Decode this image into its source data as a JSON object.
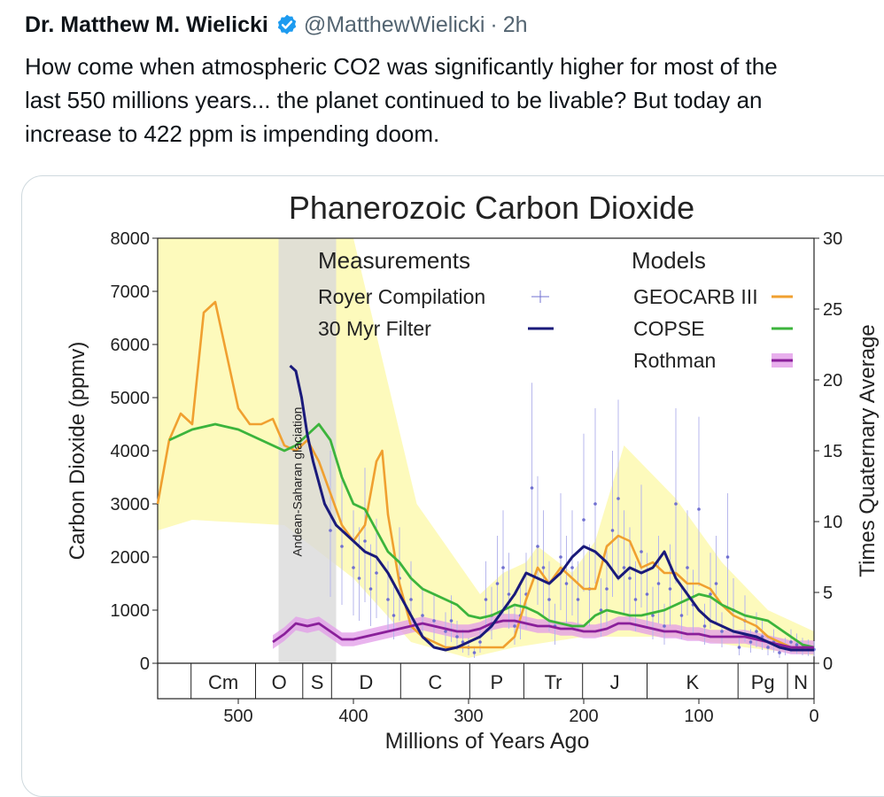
{
  "tweet": {
    "author_name": "Dr. Matthew M. Wielicki",
    "verified_icon": "verified-badge-icon",
    "handle": "@MatthewWielicki",
    "separator": "·",
    "time": "2h",
    "text_lines": [
      "How come when atmospheric CO2 was significantly higher for most of the",
      "last 550 millions  years... the planet continued to be livable?  But today an",
      "increase to 422 ppm is impending doom."
    ]
  },
  "colors": {
    "verified": "#1d9bf0",
    "geocarb": "#f0a030",
    "copse": "#3cb43c",
    "rothman": "#8a1f9a",
    "rothman_band": "#e29be8",
    "filter": "#1a1a7a",
    "royer": "#7070d0",
    "uncertainty": "#fdfab8",
    "glaciation": "#d9d9d9"
  },
  "chart_data": {
    "type": "line",
    "title": "Phanerozoic Carbon Dioxide",
    "xlabel": "Millions of Years Ago",
    "ylabel": "Carbon Dioxide (ppmv)",
    "y2label": "Times Quaternary Average",
    "xlim": [
      570,
      0
    ],
    "ylim": [
      0,
      8000
    ],
    "y2lim": [
      0,
      30
    ],
    "xticks": [
      500,
      400,
      300,
      200,
      100,
      0
    ],
    "yticks": [
      0,
      1000,
      2000,
      3000,
      4000,
      5000,
      6000,
      7000,
      8000
    ],
    "y2ticks": [
      0,
      5,
      10,
      15,
      20,
      25,
      30
    ],
    "legend": {
      "measurements_title": "Measurements",
      "models_title": "Models",
      "measurement_entries": [
        "Royer Compilation",
        "30 Myr Filter"
      ],
      "model_entries": [
        "GEOCARB III",
        "COPSE",
        "Rothman"
      ]
    },
    "annotation": "Andean-Saharan glaciation",
    "glaciation_range": [
      465,
      415
    ],
    "periods": [
      {
        "label": "",
        "start": 570,
        "end": 541
      },
      {
        "label": "Cm",
        "start": 541,
        "end": 485
      },
      {
        "label": "O",
        "start": 485,
        "end": 444
      },
      {
        "label": "S",
        "start": 444,
        "end": 419
      },
      {
        "label": "D",
        "start": 419,
        "end": 359
      },
      {
        "label": "C",
        "start": 359,
        "end": 299
      },
      {
        "label": "P",
        "start": 299,
        "end": 252
      },
      {
        "label": "Tr",
        "start": 252,
        "end": 201
      },
      {
        "label": "J",
        "start": 201,
        "end": 145
      },
      {
        "label": "K",
        "start": 145,
        "end": 66
      },
      {
        "label": "Pg",
        "start": 66,
        "end": 23
      },
      {
        "label": "N",
        "start": 23,
        "end": 0
      }
    ],
    "series": [
      {
        "name": "GEOCARB III",
        "x": [
          570,
          560,
          550,
          540,
          530,
          520,
          510,
          500,
          490,
          480,
          470,
          460,
          450,
          440,
          430,
          420,
          410,
          400,
          390,
          380,
          375,
          370,
          360,
          350,
          340,
          330,
          320,
          310,
          300,
          290,
          280,
          270,
          260,
          250,
          240,
          230,
          220,
          210,
          200,
          190,
          180,
          170,
          160,
          150,
          140,
          130,
          120,
          110,
          100,
          90,
          80,
          70,
          60,
          50,
          40,
          30,
          20,
          10,
          0
        ],
        "y": [
          3000,
          4200,
          4700,
          4500,
          6600,
          6800,
          5800,
          4800,
          4500,
          4500,
          4600,
          4100,
          4000,
          4200,
          3800,
          3200,
          2600,
          2300,
          2600,
          3800,
          4000,
          2800,
          1500,
          700,
          500,
          400,
          300,
          300,
          300,
          300,
          300,
          300,
          500,
          1200,
          1800,
          1500,
          1800,
          1600,
          1400,
          1400,
          2200,
          2400,
          2300,
          1800,
          1900,
          1700,
          1700,
          1500,
          1500,
          1400,
          1100,
          900,
          800,
          700,
          500,
          400,
          300,
          300,
          300
        ]
      },
      {
        "name": "COPSE",
        "x": [
          560,
          540,
          520,
          500,
          480,
          460,
          450,
          440,
          430,
          420,
          410,
          400,
          390,
          380,
          370,
          360,
          350,
          340,
          330,
          320,
          310,
          300,
          290,
          280,
          270,
          260,
          250,
          240,
          230,
          220,
          210,
          200,
          190,
          180,
          170,
          160,
          150,
          140,
          130,
          120,
          110,
          100,
          90,
          80,
          70,
          60,
          50,
          40,
          30,
          20,
          10,
          0
        ],
        "y": [
          4200,
          4400,
          4500,
          4400,
          4200,
          4000,
          4100,
          4300,
          4500,
          4200,
          3500,
          3000,
          2900,
          2500,
          2100,
          1900,
          1600,
          1400,
          1300,
          1200,
          1100,
          900,
          850,
          900,
          1000,
          1100,
          1050,
          950,
          800,
          750,
          700,
          700,
          900,
          1000,
          950,
          900,
          900,
          950,
          1000,
          1100,
          1200,
          1300,
          1250,
          1100,
          1000,
          900,
          850,
          800,
          650,
          500,
          350,
          300
        ]
      },
      {
        "name": "Rothman",
        "x": [
          470,
          460,
          450,
          440,
          430,
          420,
          410,
          400,
          390,
          380,
          370,
          360,
          350,
          340,
          330,
          320,
          310,
          300,
          290,
          280,
          270,
          260,
          250,
          240,
          230,
          220,
          210,
          200,
          190,
          180,
          170,
          160,
          150,
          140,
          130,
          120,
          110,
          100,
          90,
          80,
          70,
          60,
          50,
          40,
          30,
          20,
          10,
          0
        ],
        "y": [
          400,
          550,
          750,
          700,
          750,
          600,
          450,
          450,
          500,
          550,
          600,
          650,
          700,
          750,
          700,
          650,
          600,
          600,
          650,
          750,
          800,
          800,
          750,
          700,
          700,
          650,
          650,
          600,
          600,
          650,
          750,
          750,
          700,
          650,
          600,
          600,
          550,
          550,
          500,
          500,
          500,
          500,
          450,
          400,
          350,
          300,
          300,
          300
        ]
      },
      {
        "name": "30 Myr Filter",
        "x": [
          455,
          450,
          445,
          440,
          435,
          430,
          425,
          420,
          415,
          410,
          400,
          390,
          380,
          370,
          360,
          350,
          340,
          330,
          320,
          310,
          300,
          290,
          280,
          270,
          260,
          250,
          240,
          230,
          220,
          210,
          200,
          190,
          180,
          170,
          160,
          150,
          140,
          130,
          120,
          110,
          100,
          90,
          80,
          70,
          60,
          50,
          40,
          30,
          20,
          10,
          0
        ],
        "y": [
          5600,
          5500,
          5000,
          4300,
          3800,
          3400,
          3000,
          2800,
          2600,
          2500,
          2300,
          2100,
          2000,
          1700,
          1300,
          900,
          500,
          300,
          250,
          300,
          400,
          500,
          700,
          1000,
          1300,
          1700,
          1600,
          1500,
          1700,
          2000,
          2200,
          2100,
          1900,
          1600,
          1800,
          1700,
          1800,
          2100,
          1600,
          1300,
          1000,
          800,
          700,
          600,
          550,
          500,
          400,
          300,
          250,
          250,
          250
        ]
      },
      {
        "name": "Royer Compilation",
        "x": [
          420,
          410,
          400,
          395,
          390,
          385,
          380,
          370,
          365,
          360,
          350,
          340,
          330,
          320,
          315,
          310,
          305,
          300,
          295,
          290,
          285,
          280,
          275,
          270,
          265,
          260,
          255,
          250,
          245,
          240,
          235,
          230,
          225,
          220,
          215,
          210,
          205,
          200,
          195,
          190,
          185,
          180,
          175,
          170,
          165,
          160,
          155,
          150,
          145,
          140,
          135,
          130,
          125,
          120,
          115,
          110,
          105,
          100,
          95,
          90,
          85,
          80,
          75,
          70,
          65,
          60,
          55,
          50,
          45,
          40,
          35,
          30,
          25,
          20,
          15,
          10,
          5,
          0
        ],
        "y": [
          2500,
          2200,
          1800,
          1600,
          2300,
          1400,
          1700,
          1200,
          900,
          1600,
          1200,
          900,
          800,
          600,
          800,
          500,
          400,
          300,
          200,
          400,
          1200,
          900,
          1500,
          1800,
          1300,
          700,
          900,
          1300,
          3300,
          2200,
          1800,
          1200,
          700,
          2000,
          1500,
          1800,
          1200,
          2700,
          1400,
          3000,
          1000,
          1400,
          2500,
          3100,
          1800,
          1600,
          1200,
          2100,
          1300,
          900,
          1500,
          700,
          1400,
          3000,
          900,
          1800,
          1100,
          2900,
          700,
          1300,
          1500,
          600,
          2000,
          1000,
          300,
          800,
          400,
          600,
          500,
          300,
          400,
          200,
          300,
          400,
          350,
          300,
          280,
          260
        ]
      }
    ]
  }
}
